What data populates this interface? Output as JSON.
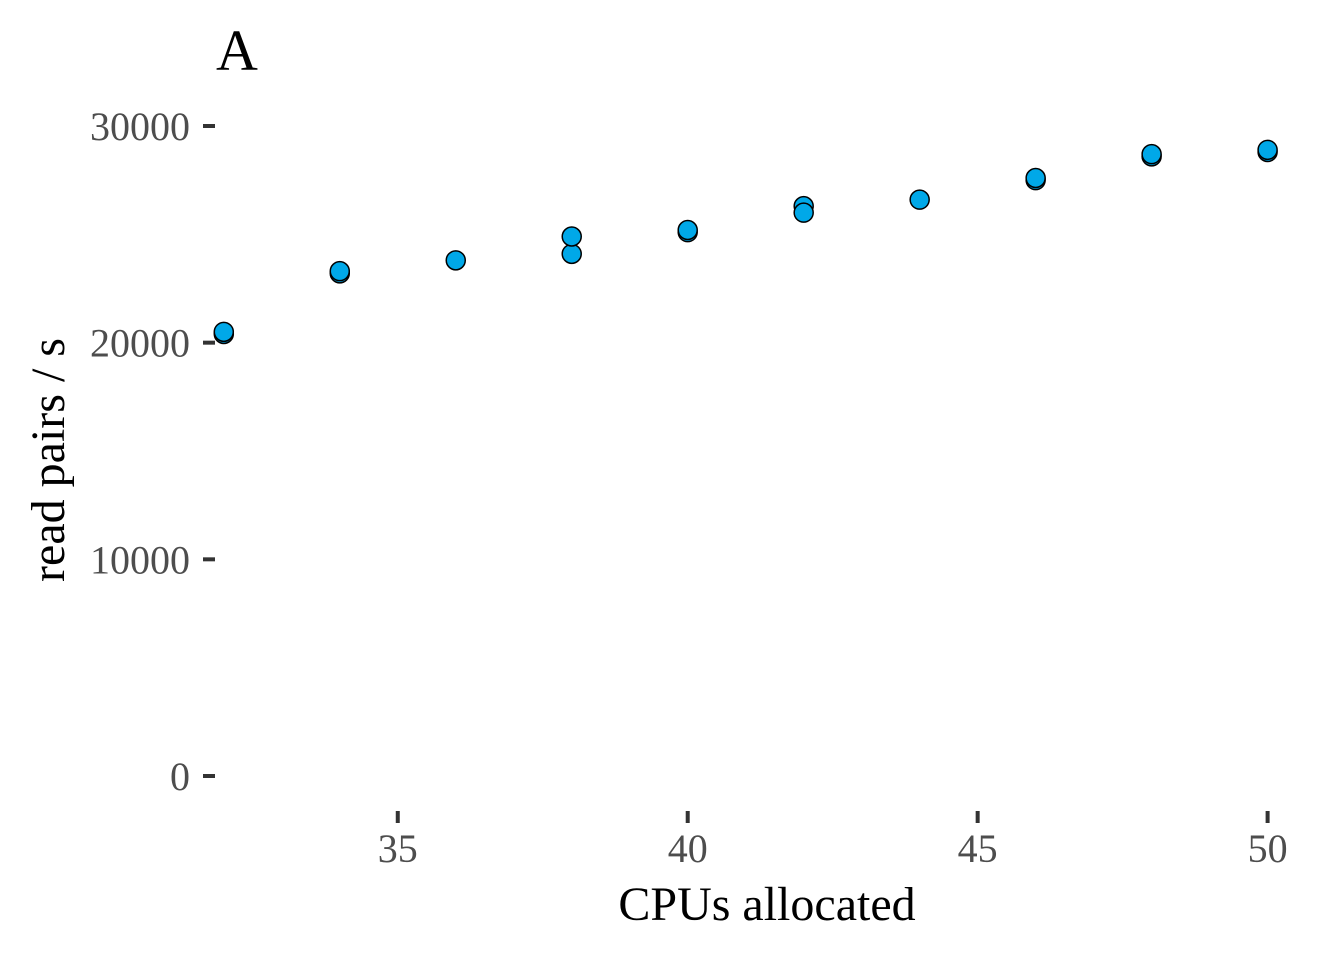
{
  "panel_tag": "A",
  "colors": {
    "point_fill": "#00a8e8",
    "point_stroke": "#000000"
  },
  "chart_data": {
    "type": "scatter",
    "xlabel": "CPUs allocated",
    "ylabel": "read pairs / s",
    "xlim": [
      31.9,
      50.3
    ],
    "ylim": [
      -1200,
      31200
    ],
    "x_ticks": [
      35,
      40,
      45,
      50
    ],
    "y_ticks": [
      0,
      10000,
      20000,
      30000
    ],
    "x_tick_labels": [
      "35",
      "40",
      "45",
      "50"
    ],
    "y_tick_labels": [
      "0",
      "10000",
      "20000",
      "30000"
    ],
    "grid": false,
    "legend": "none",
    "series": [
      {
        "points": [
          {
            "x": 32,
            "y": 20400
          },
          {
            "x": 32,
            "y": 20500
          },
          {
            "x": 34,
            "y": 23200
          },
          {
            "x": 34,
            "y": 23300
          },
          {
            "x": 36,
            "y": 23800
          },
          {
            "x": 38,
            "y": 24100
          },
          {
            "x": 38,
            "y": 24900
          },
          {
            "x": 40,
            "y": 25100
          },
          {
            "x": 40,
            "y": 25200
          },
          {
            "x": 42,
            "y": 26300
          },
          {
            "x": 42,
            "y": 26000
          },
          {
            "x": 44,
            "y": 26600
          },
          {
            "x": 46,
            "y": 27500
          },
          {
            "x": 46,
            "y": 27600
          },
          {
            "x": 48,
            "y": 28600
          },
          {
            "x": 48,
            "y": 28700
          },
          {
            "x": 50,
            "y": 28800
          },
          {
            "x": 50,
            "y": 28900
          }
        ]
      }
    ]
  }
}
